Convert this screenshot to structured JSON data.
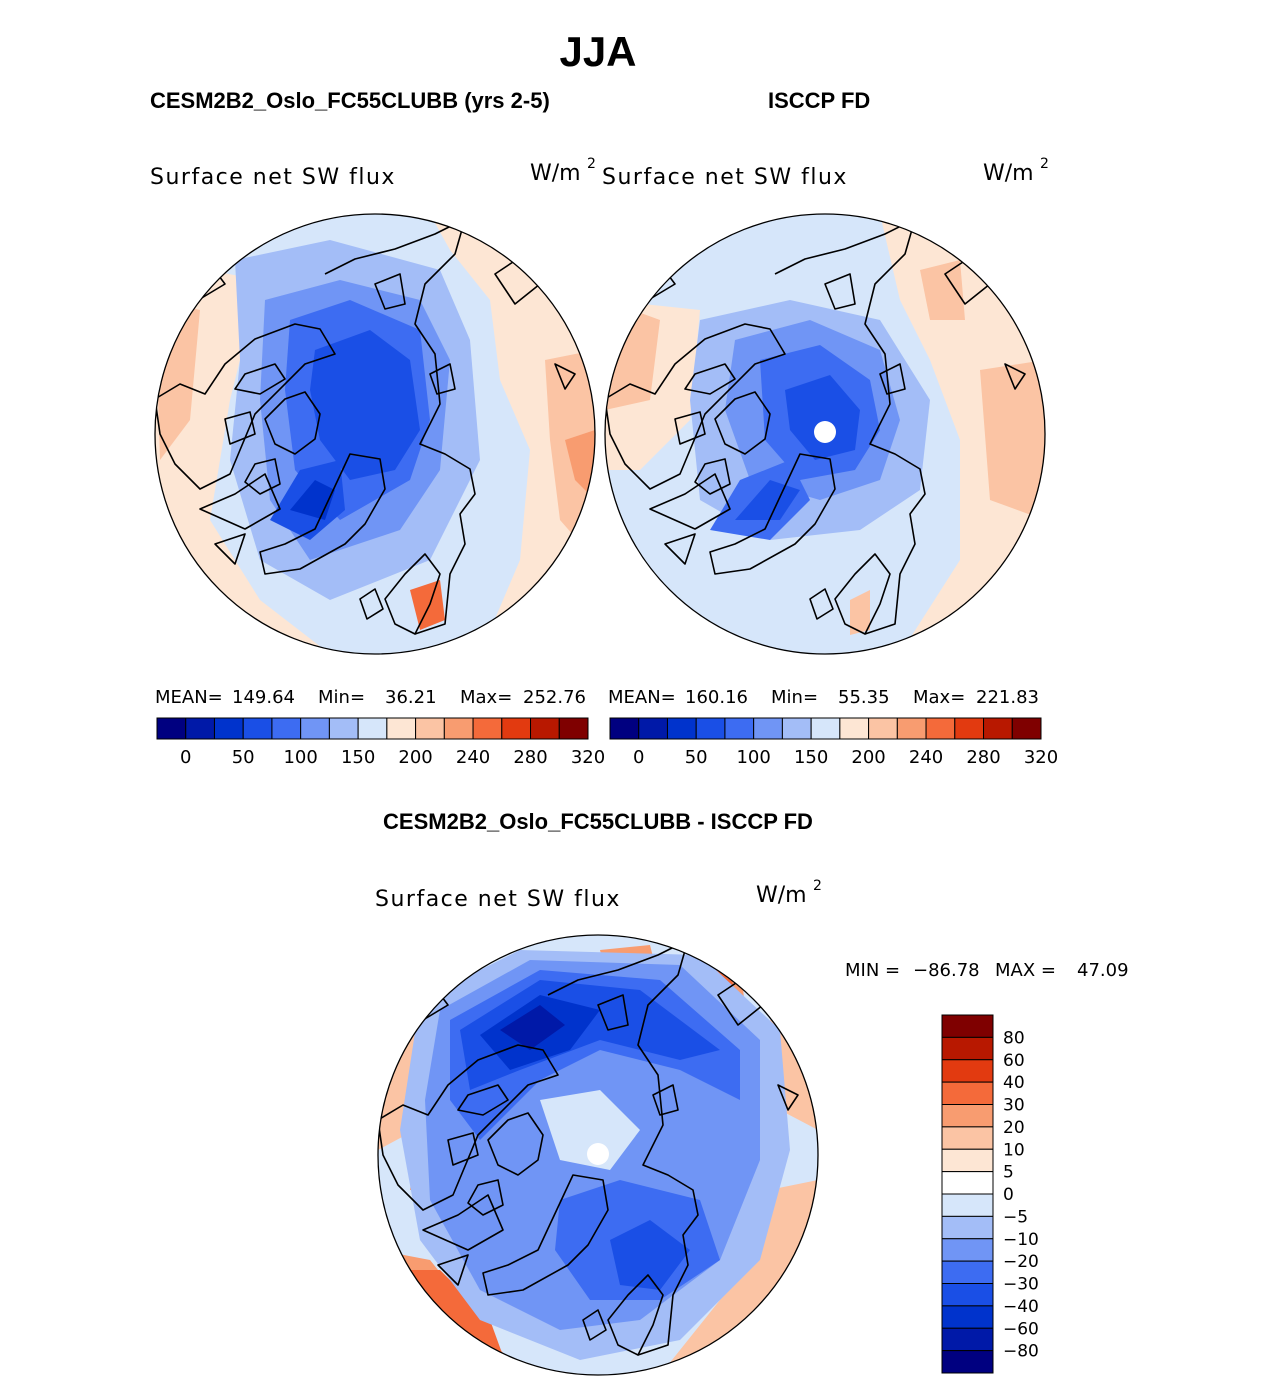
{
  "page_title": "JJA",
  "chart_data": [
    {
      "type": "heatmap",
      "panel_title": "CESM2B2_Oslo_FC55CLUBB (yrs 2-5)",
      "variable": "Surface net SW flux",
      "units_base": "W/m",
      "units_exp": "2",
      "stats": {
        "mean_label": "MEAN=",
        "mean": "149.64",
        "min_label": "Min=",
        "min": "36.21",
        "max_label": "Max=",
        "max": "252.76"
      },
      "colorbar": {
        "orientation": "horizontal",
        "tick_labels": [
          "0",
          "50",
          "100",
          "150",
          "200",
          "240",
          "280",
          "320"
        ],
        "colors": [
          "#000080",
          "#0019a8",
          "#0033cc",
          "#1a4fe6",
          "#3d6cf2",
          "#7095f5",
          "#a3bdf7",
          "#d6e6fa",
          "#fde6d4",
          "#fbc4a4",
          "#f89c70",
          "#f46a3a",
          "#e23a10",
          "#b81800",
          "#7f0000"
        ]
      },
      "missing_pole": false
    },
    {
      "type": "heatmap",
      "panel_title": "ISCCP FD",
      "variable": "Surface net SW flux",
      "units_base": "W/m",
      "units_exp": "2",
      "stats": {
        "mean_label": "MEAN=",
        "mean": "160.16",
        "min_label": "Min=",
        "min": "55.35",
        "max_label": "Max=",
        "max": "221.83"
      },
      "colorbar": {
        "orientation": "horizontal",
        "tick_labels": [
          "0",
          "50",
          "100",
          "150",
          "200",
          "240",
          "280",
          "320"
        ],
        "colors": [
          "#000080",
          "#0019a8",
          "#0033cc",
          "#1a4fe6",
          "#3d6cf2",
          "#7095f5",
          "#a3bdf7",
          "#d6e6fa",
          "#fde6d4",
          "#fbc4a4",
          "#f89c70",
          "#f46a3a",
          "#e23a10",
          "#b81800",
          "#7f0000"
        ]
      },
      "missing_pole": true
    },
    {
      "type": "heatmap",
      "panel_title": "CESM2B2_Oslo_FC55CLUBB - ISCCP FD",
      "variable": "Surface net SW flux",
      "units_base": "W/m",
      "units_exp": "2",
      "stats": {
        "min_label": "MIN =",
        "min": "−86.78",
        "max_label": "MAX =",
        "max": "47.09"
      },
      "colorbar": {
        "orientation": "vertical",
        "tick_labels": [
          "80",
          "60",
          "40",
          "30",
          "20",
          "10",
          "5",
          "0",
          "−5",
          "−10",
          "−20",
          "−30",
          "−40",
          "−60",
          "−80"
        ],
        "colors": [
          "#7f0000",
          "#b81800",
          "#e23a10",
          "#f46a3a",
          "#f89c70",
          "#fbc4a4",
          "#fde6d4",
          "#ffffff",
          "#d6e6fa",
          "#a3bdf7",
          "#7095f5",
          "#3d6cf2",
          "#1a4fe6",
          "#0033cc",
          "#0019a8",
          "#000080"
        ]
      },
      "missing_pole": true
    }
  ]
}
